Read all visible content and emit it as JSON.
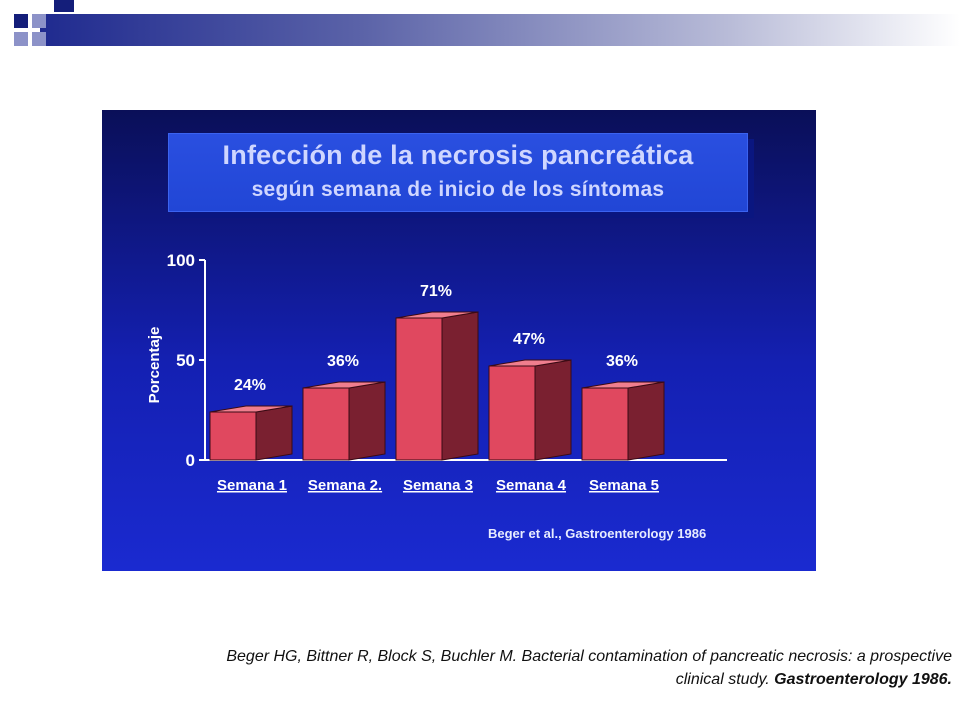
{
  "slide": {
    "title_line1": "Infección de la necrosis pancreática",
    "title_line2": "según semana de inicio de los síntomas",
    "source_note": "Beger et al., Gastroenterology 1986"
  },
  "citation": {
    "text": "Beger HG, Bittner R, Block S, Buchler M. Bacterial contamination of  pancreatic necrosis: a prospective clinical study.",
    "journal": "Gastroenterology 1986."
  },
  "colors": {
    "bar_front": "#e0485f",
    "bar_side": "#7a2030",
    "bar_top": "#f07e8e",
    "axis": "#ffffff",
    "tick_text": "#ffffff",
    "label_text": "#ffffff"
  },
  "chart_data": {
    "type": "bar",
    "categories": [
      "Semana 1",
      "Semana 2.",
      "Semana 3",
      "Semana 4",
      "Semana 5"
    ],
    "values": [
      24,
      36,
      71,
      47,
      36
    ],
    "value_labels": [
      "24%",
      "36%",
      "71%",
      "47%",
      "36%"
    ],
    "ylabel": "Porcentaje",
    "xlabel": "",
    "ylim": [
      0,
      100
    ],
    "yticks": [
      0,
      50,
      100
    ],
    "grid": false,
    "style": "3d"
  }
}
